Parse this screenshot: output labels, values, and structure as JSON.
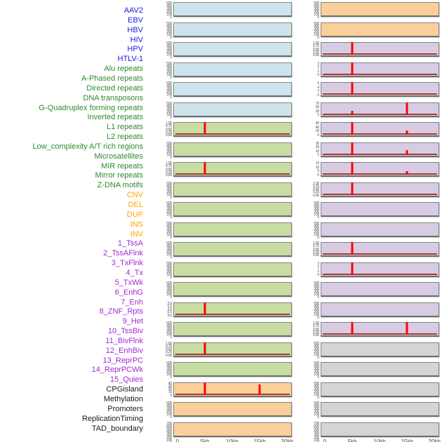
{
  "figure": {
    "kind": "genomic feature coverage small-multiples, two panel columns sharing a 0-20kb x axis",
    "colors": {
      "virus_label": "#1a1ae0",
      "virus_bg": "#cde4ec",
      "repeat_label": "#2e8b2e",
      "repeat_bg": "#c8dda2",
      "sv_label": "#ffa500",
      "sv_bg": "#fbcf99",
      "chromatin_label": "#a329d6",
      "chromatin_bg": "#d7cce4",
      "annotation_label": "#1a1a1a",
      "annotation_bg": "#d4d4d4",
      "spike": "#ff0000",
      "baseline": "#a93c2e",
      "panel_border": "#838383",
      "tick_text": "#4d4d4d",
      "axis_text": "#454545"
    }
  },
  "chart_data": {
    "type": "line",
    "layout": "44 rows of mini line plots arranged in two columns (rows 1-22 left column, rows 23-44 right column); red signal line over colored panel; flat rows show no line",
    "x_axis": {
      "ticks": [
        "0",
        "5kb",
        "10kb",
        "15kb",
        "20kb"
      ],
      "range_kb": [
        0,
        20
      ]
    },
    "legend_groups": [
      "virus",
      "repeat",
      "sv",
      "chromatin",
      "annotation"
    ],
    "rows": [
      {
        "label": "AAV2",
        "group": "virus",
        "y_ticks": [
          "500",
          "400",
          "300",
          "200",
          "100",
          "0"
        ],
        "peaks": []
      },
      {
        "label": "EBV",
        "group": "virus",
        "y_ticks": [
          "500",
          "400",
          "300",
          "200",
          "100",
          "0"
        ],
        "peaks": []
      },
      {
        "label": "HBV",
        "group": "virus",
        "y_ticks": [
          "500",
          "400",
          "300",
          "200",
          "100",
          "0"
        ],
        "peaks": []
      },
      {
        "label": "HIV",
        "group": "virus",
        "y_ticks": [
          "500",
          "400",
          "300",
          "200",
          "100",
          "0"
        ],
        "peaks": []
      },
      {
        "label": "HPV",
        "group": "virus",
        "y_ticks": [
          "500",
          "400",
          "300",
          "200",
          "100",
          "0"
        ],
        "peaks": []
      },
      {
        "label": "HTLV-1",
        "group": "virus",
        "y_ticks": [
          "500",
          "400",
          "300",
          "200",
          "100",
          "0"
        ],
        "peaks": []
      },
      {
        "label": "Alu repeats",
        "group": "repeat",
        "y_ticks": [
          "1.00",
          "0.75",
          "0.50",
          "0.25",
          "0.00"
        ],
        "peaks": [
          {
            "x_kb": 5,
            "value": 1.0
          }
        ]
      },
      {
        "label": "A-Phased repeats",
        "group": "repeat",
        "y_ticks": [
          "500",
          "400",
          "300",
          "200",
          "100",
          "0"
        ],
        "peaks": []
      },
      {
        "label": "Directed repeats",
        "group": "repeat",
        "y_ticks": [
          "1.00",
          "0.75",
          "0.50",
          "0.25",
          "0.00"
        ],
        "peaks": [
          {
            "x_kb": 5,
            "value": 1.0
          }
        ]
      },
      {
        "label": "DNA transposons",
        "group": "repeat",
        "y_ticks": [
          "500",
          "400",
          "300",
          "200",
          "100",
          "0"
        ],
        "peaks": []
      },
      {
        "label": "G-Quadruplex forming repeats",
        "group": "repeat",
        "y_ticks": [
          "500",
          "400",
          "300",
          "200",
          "100",
          "0"
        ],
        "peaks": []
      },
      {
        "label": "Inverted repeats",
        "group": "repeat",
        "y_ticks": [
          "500",
          "400",
          "300",
          "200",
          "100",
          "0"
        ],
        "peaks": []
      },
      {
        "label": "L1 repeats",
        "group": "repeat",
        "y_ticks": [
          "500",
          "400",
          "300",
          "200",
          "100",
          "0"
        ],
        "peaks": []
      },
      {
        "label": "L2 repeats",
        "group": "repeat",
        "y_ticks": [
          "500",
          "400",
          "300",
          "200",
          "100",
          "0"
        ],
        "peaks": []
      },
      {
        "label": "Low_complexity A/T rich regions",
        "group": "repeat",
        "y_ticks": [
          "500",
          "400",
          "300",
          "200",
          "100",
          "0"
        ],
        "peaks": []
      },
      {
        "label": "Microsatellites",
        "group": "repeat",
        "y_ticks": [
          "2.0",
          "1.5",
          "1.0",
          "0.5",
          "0.0"
        ],
        "peaks": [
          {
            "x_kb": 5,
            "value": 2.0
          }
        ]
      },
      {
        "label": "MIR repeats",
        "group": "repeat",
        "y_ticks": [
          "500",
          "400",
          "300",
          "200",
          "100",
          "0"
        ],
        "peaks": []
      },
      {
        "label": "Mirror repeats",
        "group": "repeat",
        "y_ticks": [
          "1.00",
          "0.75",
          "0.50",
          "0.25",
          "0.00"
        ],
        "peaks": [
          {
            "x_kb": 5,
            "value": 1.0
          }
        ]
      },
      {
        "label": "Z-DNA motifs",
        "group": "repeat",
        "y_ticks": [
          "500",
          "400",
          "300",
          "200",
          "100",
          "0"
        ],
        "peaks": []
      },
      {
        "label": "CNV",
        "group": "sv",
        "y_ticks": [
          "40",
          "30",
          "20",
          "10",
          "0"
        ],
        "peaks": [
          {
            "x_kb": 5,
            "value": 42
          },
          {
            "x_kb": 15,
            "value": 34
          }
        ]
      },
      {
        "label": "DEL",
        "group": "sv",
        "y_ticks": [
          "500",
          "400",
          "300",
          "200",
          "100",
          "0"
        ],
        "peaks": []
      },
      {
        "label": "DUP",
        "group": "sv",
        "y_ticks": [
          "700",
          "600",
          "500",
          "400",
          "300",
          "200",
          "100",
          "0"
        ],
        "peaks": []
      },
      {
        "label": "INS",
        "group": "sv",
        "y_ticks": [
          "500",
          "400",
          "300",
          "200",
          "100",
          "0"
        ],
        "peaks": []
      },
      {
        "label": "INV",
        "group": "sv",
        "y_ticks": [
          "500",
          "400",
          "300",
          "200",
          "100",
          "0"
        ],
        "peaks": []
      },
      {
        "label": "1_TssA",
        "group": "chromatin",
        "y_ticks": [
          "1.00",
          "0.75",
          "0.50",
          "0.25",
          "0.00"
        ],
        "peaks": [
          {
            "x_kb": 5,
            "value": 1.0
          }
        ]
      },
      {
        "label": "2_TssAFlnk",
        "group": "chromatin",
        "y_ticks": [
          "3",
          "2",
          "1",
          "0"
        ],
        "peaks": [
          {
            "x_kb": 5,
            "value": 3.2
          }
        ]
      },
      {
        "label": "3_TxFlnk",
        "group": "chromatin",
        "y_ticks": [
          "6",
          "4",
          "2",
          "0"
        ],
        "peaks": [
          {
            "x_kb": 5,
            "value": 6.5
          }
        ]
      },
      {
        "label": "4_Tx",
        "group": "chromatin",
        "y_ticks": [
          "75",
          "50",
          "25",
          "0"
        ],
        "peaks": [
          {
            "x_kb": 5,
            "value": 28
          },
          {
            "x_kb": 15,
            "value": 88
          }
        ]
      },
      {
        "label": "5_TxWk",
        "group": "chromatin",
        "y_ticks": [
          "60",
          "40",
          "20",
          "0"
        ],
        "peaks": [
          {
            "x_kb": 5,
            "value": 65
          },
          {
            "x_kb": 15,
            "value": 22
          }
        ]
      },
      {
        "label": "6_EnhG",
        "group": "chromatin",
        "y_ticks": [
          "30",
          "20",
          "10",
          "0"
        ],
        "peaks": [
          {
            "x_kb": 5,
            "value": 33
          },
          {
            "x_kb": 15,
            "value": 13
          }
        ]
      },
      {
        "label": "7_Enh",
        "group": "chromatin",
        "y_ticks": [
          "15",
          "10",
          "5",
          "0"
        ],
        "peaks": [
          {
            "x_kb": 5,
            "value": 16
          },
          {
            "x_kb": 15,
            "value": 4
          }
        ]
      },
      {
        "label": "8_ZNF_Rpts",
        "group": "chromatin",
        "y_ticks": [
          "1.00",
          "0.75",
          "0.50",
          "0.25",
          "0.00"
        ],
        "peaks": [
          {
            "x_kb": 5,
            "value": 1.0
          }
        ]
      },
      {
        "label": "9_Het",
        "group": "chromatin",
        "y_ticks": [
          "500",
          "400",
          "300",
          "200",
          "100",
          "0"
        ],
        "peaks": []
      },
      {
        "label": "10_TssBiv",
        "group": "chromatin",
        "y_ticks": [
          "500",
          "400",
          "300",
          "200",
          "100",
          "0"
        ],
        "peaks": []
      },
      {
        "label": "11_BivFlnk",
        "group": "chromatin",
        "y_ticks": [
          "1.00",
          "0.75",
          "0.50",
          "0.25",
          "0.00"
        ],
        "peaks": [
          {
            "x_kb": 5,
            "value": 1.0
          }
        ]
      },
      {
        "label": "12_EnhBiv",
        "group": "chromatin",
        "y_ticks": [
          "3",
          "2",
          "1",
          "0"
        ],
        "peaks": [
          {
            "x_kb": 5,
            "value": 3.2
          }
        ]
      },
      {
        "label": "13_ReprPC",
        "group": "chromatin",
        "y_ticks": [
          "500",
          "400",
          "300",
          "200",
          "100",
          "0"
        ],
        "peaks": []
      },
      {
        "label": "14_ReprPCWk",
        "group": "chromatin",
        "y_ticks": [
          "500",
          "400",
          "300",
          "200",
          "100",
          "0"
        ],
        "peaks": []
      },
      {
        "label": "15_Quies",
        "group": "chromatin",
        "y_ticks": [
          "1.00",
          "0.75",
          "0.50",
          "0.25",
          "0.00"
        ],
        "peaks": [
          {
            "x_kb": 5,
            "value": 1.0
          },
          {
            "x_kb": 15,
            "value": 1.0
          }
        ]
      },
      {
        "label": "CPGisland",
        "group": "annotation",
        "y_ticks": [
          "500",
          "400",
          "300",
          "200",
          "100",
          "0"
        ],
        "peaks": []
      },
      {
        "label": "Methylation",
        "group": "annotation",
        "y_ticks": [
          "500",
          "400",
          "300",
          "200",
          "100",
          "0"
        ],
        "peaks": []
      },
      {
        "label": "Promoters",
        "group": "annotation",
        "y_ticks": [
          "500",
          "400",
          "300",
          "200",
          "100",
          "0"
        ],
        "peaks": []
      },
      {
        "label": "ReplicationTiming",
        "group": "annotation",
        "y_ticks": [
          "500",
          "400",
          "300",
          "200",
          "100",
          "0"
        ],
        "peaks": []
      },
      {
        "label": "TAD_boundary",
        "group": "annotation",
        "y_ticks": [
          "700",
          "600",
          "500",
          "400",
          "300",
          "200",
          "100",
          "0"
        ],
        "peaks": []
      }
    ]
  }
}
